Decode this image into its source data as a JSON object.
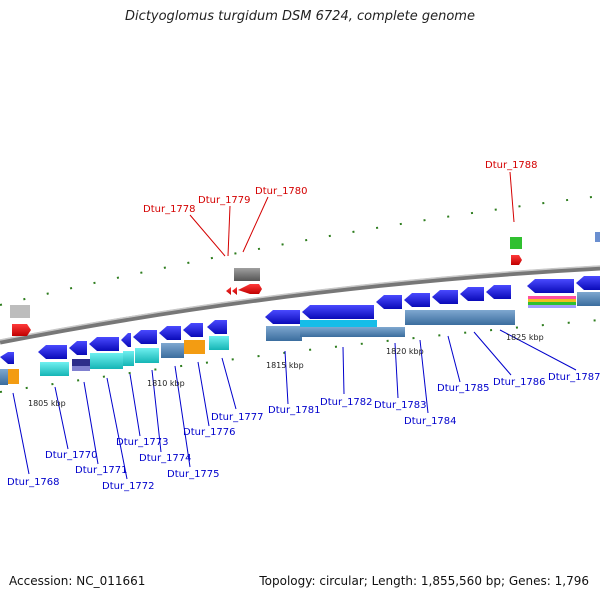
{
  "title": "Dictyoglomus turgidum DSM 6724, complete genome",
  "footer": {
    "accession": "Accession: NC_011661",
    "summary": "Topology: circular; Length: 1,855,560 bp; Genes: 1,796"
  },
  "colors": {
    "blue_gene": "#1515e6",
    "red_label": "#d40000",
    "blue_label": "#0000cc",
    "backbone": "#8c8c8c",
    "tick": "#2e7d1e",
    "cyan": "#22d3d3",
    "steel": "#4f86b8",
    "orange": "#f39c12",
    "gray_gene": "#777777",
    "green_gene": "#30c030"
  },
  "scale_labels": [
    "1805 kbp",
    "1810 kbp",
    "1815 kbp",
    "1820 kbp",
    "1825 kbp"
  ],
  "red_labels": [
    "Dtur_1778",
    "Dtur_1779",
    "Dtur_1780",
    "Dtur_1788"
  ],
  "blue_labels": [
    "Dtur_1768",
    "Dtur_1770",
    "Dtur_1771",
    "Dtur_1772",
    "Dtur_1773",
    "Dtur_1774",
    "Dtur_1775",
    "Dtur_1776",
    "Dtur_1777",
    "Dtur_1781",
    "Dtur_1782",
    "Dtur_1783",
    "Dtur_1784",
    "Dtur_1785",
    "Dtur_1786",
    "Dtur_1787"
  ]
}
